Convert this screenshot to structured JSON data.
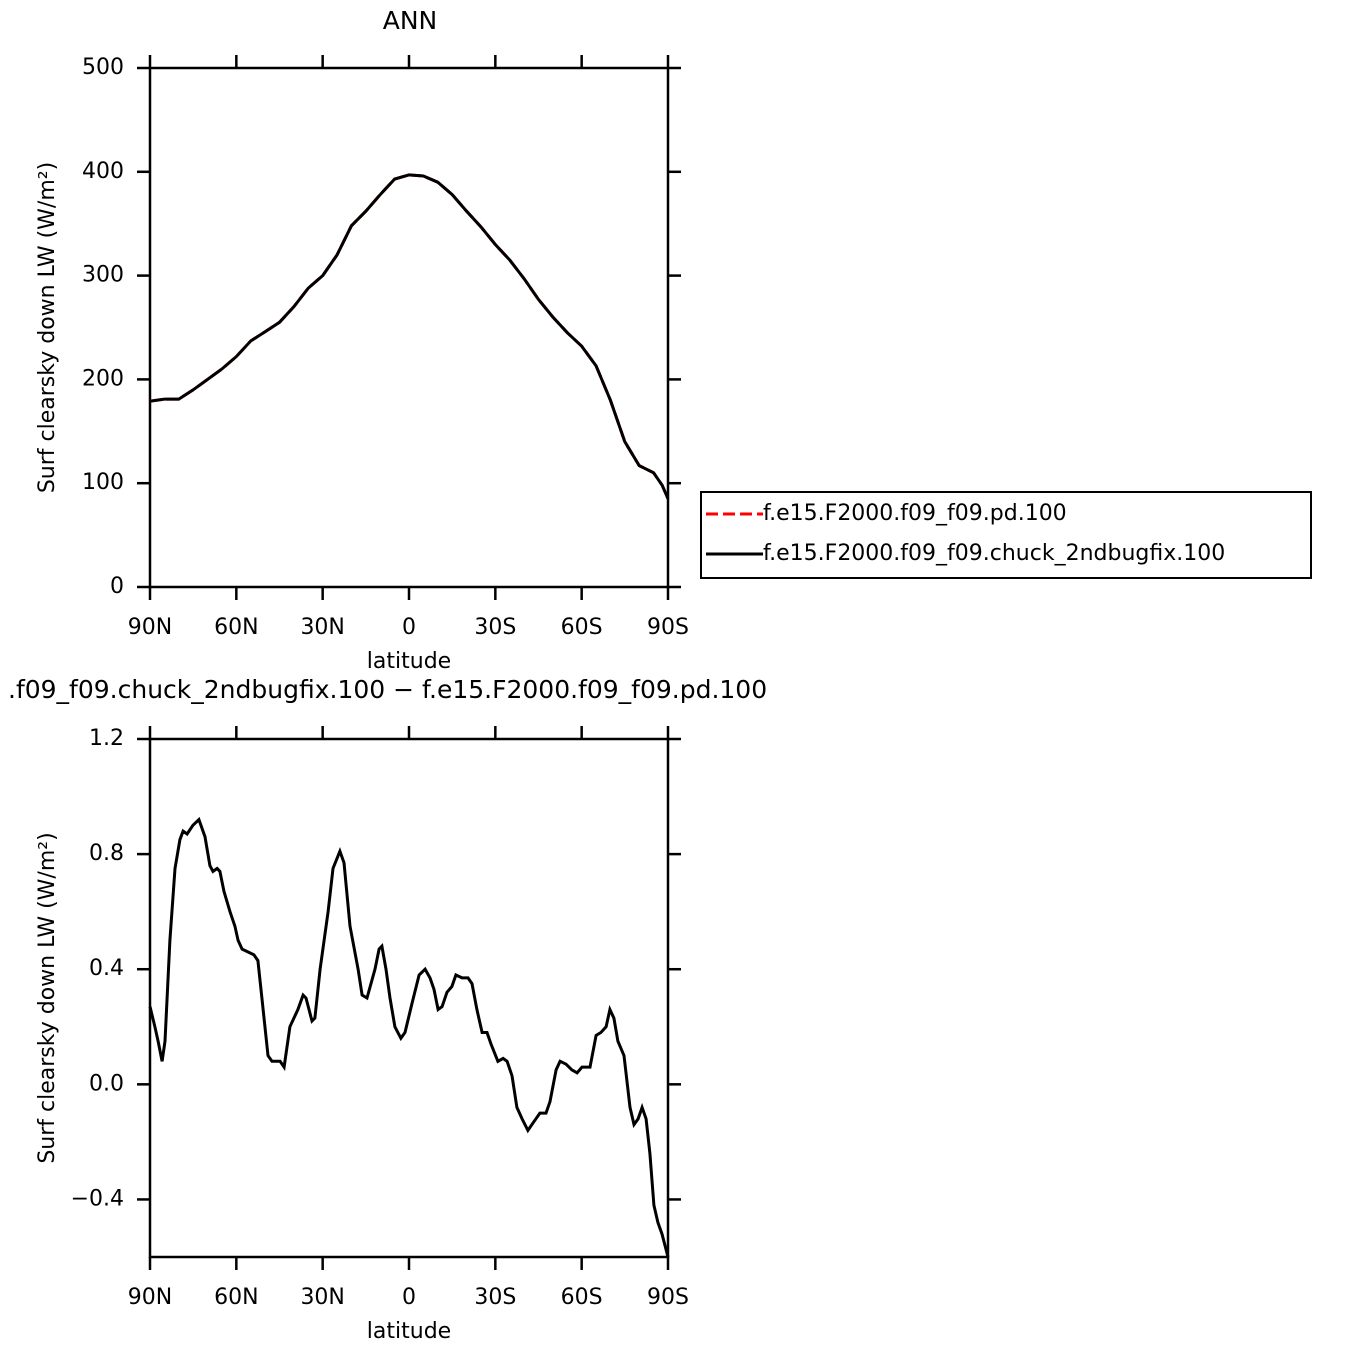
{
  "chart_data": [
    {
      "type": "line",
      "title": "ANN",
      "xlabel": "latitude",
      "ylabel": "Surf clearsky down LW (W/m²)",
      "x": [
        90,
        85,
        80,
        75,
        70,
        65,
        60,
        55,
        50,
        45,
        40,
        35,
        30,
        25,
        20,
        15,
        10,
        5,
        0,
        -5,
        -10,
        -15,
        -20,
        -25,
        -30,
        -35,
        -40,
        -45,
        -50,
        -55,
        -60,
        -65,
        -70,
        -75,
        -80,
        -85,
        -88,
        -90
      ],
      "series": [
        {
          "name": "f.e15.F2000.f09_f09.pd.100",
          "color": "#ff0000",
          "style": "dashed",
          "values": [
            179,
            181,
            181,
            190,
            200,
            210,
            222,
            237,
            246,
            255,
            270,
            288,
            300,
            320,
            348,
            362,
            378,
            393,
            397,
            396,
            390,
            378,
            362,
            347,
            330,
            315,
            297,
            277,
            260,
            245,
            232,
            213,
            180,
            140,
            117,
            110,
            98,
            85
          ]
        },
        {
          "name": "f.e15.F2000.f09_f09.chuck_2ndbugfix.100",
          "color": "#000000",
          "style": "solid",
          "values": [
            179,
            181,
            181,
            190,
            200,
            210,
            222,
            237,
            246,
            255,
            270,
            288,
            300,
            320,
            348,
            362,
            378,
            393,
            397,
            396,
            390,
            378,
            362,
            347,
            330,
            315,
            297,
            277,
            260,
            245,
            232,
            213,
            180,
            140,
            117,
            110,
            98,
            85
          ]
        }
      ],
      "xlim": [
        90,
        -90
      ],
      "xticks": [
        {
          "value": 90,
          "label": "90N"
        },
        {
          "value": 60,
          "label": "60N"
        },
        {
          "value": 30,
          "label": "30N"
        },
        0,
        {
          "value": -30,
          "label": "30S"
        },
        {
          "value": -60,
          "label": "60S"
        },
        {
          "value": -90,
          "label": "90S"
        }
      ],
      "ylim": [
        0,
        500
      ],
      "yticks": [
        0,
        100,
        200,
        300,
        400,
        500
      ],
      "legend": "outside right"
    },
    {
      "type": "line",
      "title": ".f09_f09.chuck_2ndbugfix.100 − f.e15.F2000.f09_f09.pd.100",
      "xlabel": "latitude",
      "ylabel": "Surf clearsky down LW (W/m²)",
      "x": [
        90,
        88.3,
        87.2,
        85.8,
        84.8,
        83.1,
        81.3,
        79.6,
        78.5,
        77.1,
        75.1,
        73.0,
        70.9,
        69.2,
        68.1,
        66.7,
        65.7,
        64.3,
        62.2,
        60.5,
        59.4,
        58.0,
        55.9,
        53.9,
        52.5,
        51.1,
        49.0,
        47.6,
        44.8,
        43.4,
        41.4,
        38.6,
        36.8,
        35.8,
        33.7,
        32.7,
        30.9,
        28.1,
        26.4,
        24.0,
        22.6,
        20.5,
        17.7,
        16.3,
        14.6,
        11.8,
        10.4,
        9.4,
        8.0,
        6.6,
        4.9,
        2.8,
        1.4,
        -1.0,
        -3.5,
        -5.6,
        -7.3,
        -8.7,
        -10.1,
        -11.5,
        -13.2,
        -14.9,
        -16.3,
        -18.4,
        -20.5,
        -21.9,
        -23.6,
        -25.4,
        -27.1,
        -28.5,
        -30.9,
        -32.7,
        -34.1,
        -35.8,
        -37.5,
        -39.3,
        -41.3,
        -43.4,
        -45.5,
        -47.6,
        -49.0,
        -51.1,
        -52.5,
        -54.6,
        -56.6,
        -58.4,
        -60.1,
        -62.9,
        -65.0,
        -66.7,
        -68.5,
        -69.8,
        -71.2,
        -72.6,
        -74.7,
        -76.8,
        -78.2,
        -79.6,
        -81.0,
        -82.4,
        -83.7,
        -85.1,
        -86.5,
        -87.9,
        -90
      ],
      "series": [
        {
          "color": "#000000",
          "style": "solid",
          "values": [
            0.27,
            0.2,
            0.15,
            0.08,
            0.15,
            0.5,
            0.75,
            0.85,
            0.88,
            0.87,
            0.9,
            0.92,
            0.86,
            0.76,
            0.74,
            0.75,
            0.74,
            0.67,
            0.6,
            0.55,
            0.5,
            0.47,
            0.46,
            0.45,
            0.43,
            0.3,
            0.1,
            0.08,
            0.08,
            0.06,
            0.2,
            0.26,
            0.31,
            0.3,
            0.22,
            0.23,
            0.4,
            0.6,
            0.75,
            0.81,
            0.77,
            0.55,
            0.4,
            0.31,
            0.3,
            0.4,
            0.47,
            0.48,
            0.4,
            0.3,
            0.2,
            0.16,
            0.18,
            0.28,
            0.38,
            0.4,
            0.37,
            0.33,
            0.26,
            0.27,
            0.32,
            0.34,
            0.38,
            0.37,
            0.37,
            0.35,
            0.26,
            0.18,
            0.18,
            0.14,
            0.08,
            0.09,
            0.08,
            0.03,
            -0.08,
            -0.12,
            -0.16,
            -0.13,
            -0.1,
            -0.1,
            -0.06,
            0.05,
            0.08,
            0.07,
            0.05,
            0.04,
            0.06,
            0.06,
            0.17,
            0.18,
            0.2,
            0.26,
            0.23,
            0.15,
            0.1,
            -0.08,
            -0.14,
            -0.12,
            -0.08,
            -0.12,
            -0.24,
            -0.42,
            -0.48,
            -0.52,
            -0.6
          ]
        }
      ],
      "xlim": [
        90,
        -90
      ],
      "xticks": [
        {
          "value": 90,
          "label": "90N"
        },
        {
          "value": 60,
          "label": "60N"
        },
        {
          "value": 30,
          "label": "30N"
        },
        0,
        {
          "value": -30,
          "label": "30S"
        },
        {
          "value": -60,
          "label": "60S"
        },
        {
          "value": -90,
          "label": "90S"
        }
      ],
      "ylim": [
        -0.6,
        1.2
      ],
      "yticks": [
        {
          "value": -0.4,
          "label": "−0.4"
        },
        {
          "value": 0,
          "label": "0.0"
        },
        0.4,
        0.8,
        1.2
      ]
    }
  ]
}
